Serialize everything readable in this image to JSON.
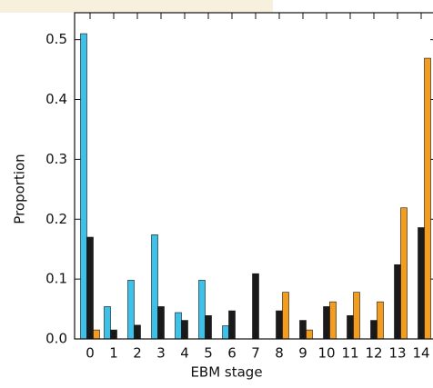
{
  "chart_data": {
    "type": "bar",
    "xlabel": "EBM stage",
    "ylabel": "Proportion",
    "categories": [
      "0",
      "1",
      "2",
      "3",
      "4",
      "5",
      "6",
      "7",
      "8",
      "9",
      "10",
      "11",
      "12",
      "13",
      "14"
    ],
    "series": [
      {
        "color": "#3ec1e8",
        "values": [
          0.51,
          0.054,
          0.098,
          0.174,
          0.044,
          0.098,
          0.022,
          0,
          0,
          0,
          0,
          0,
          0,
          0,
          0
        ]
      },
      {
        "color": "#1a1a1a",
        "values": [
          0.17,
          0.015,
          0.023,
          0.054,
          0.031,
          0.039,
          0.047,
          0.109,
          0.047,
          0.031,
          0.054,
          0.039,
          0.031,
          0.124,
          0.186
        ]
      },
      {
        "color": "#f39c1e",
        "values": [
          0.015,
          0,
          0,
          0,
          0,
          0,
          0,
          0,
          0.078,
          0.015,
          0.062,
          0.078,
          0.062,
          0.219,
          0.469
        ]
      }
    ],
    "ylim": [
      0,
      0.545
    ],
    "yticks": [
      {
        "value": 0,
        "label": "0.0"
      },
      0.1,
      0.2,
      0.3,
      0.4,
      0.5
    ]
  }
}
